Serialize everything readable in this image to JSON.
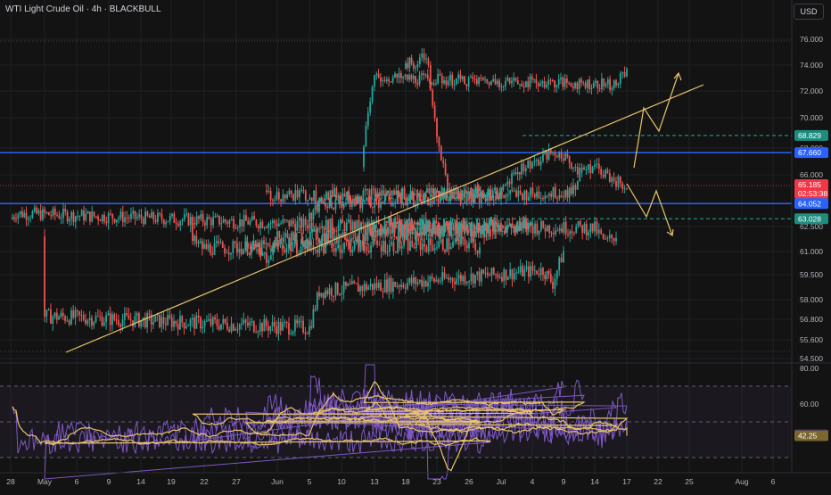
{
  "header": {
    "symbol_title": "WTI Light Crude Oil · 4h · BLACKBULL",
    "currency_button": "USD"
  },
  "colors": {
    "background": "#131313",
    "up": "#26a69a",
    "down": "#ef5350",
    "trendline": "#e8c56a",
    "level_line": "#2962ff",
    "dashed_level": "#26a69a",
    "rsi_line": "#7e57c2",
    "rsi_ma": "#e8c56a",
    "price_badge": "#f23645"
  },
  "chart_data": {
    "type": "candlestick",
    "symbol": "WTI Light Crude Oil",
    "timeframe": "4h",
    "broker": "BLACKBULL",
    "price_axis_ticks": [
      76.0,
      74.0,
      72.0,
      70.0,
      68.0,
      66.0,
      62.5,
      61.0,
      59.5,
      58.0,
      56.8,
      55.6,
      54.5
    ],
    "price_axis_labels": [
      "76.000",
      "74.000",
      "72.000",
      "70.000",
      "68.000",
      "66.000",
      "62.500",
      "61.000",
      "59.500",
      "58.000",
      "56.800",
      "55.600",
      "54.500"
    ],
    "x_axis_labels": [
      "28",
      "May",
      "6",
      "9",
      "14",
      "19",
      "22",
      "27",
      "Jun",
      "5",
      "10",
      "13",
      "18",
      "23",
      "26",
      "Jul",
      "4",
      "9",
      "14",
      "17",
      "22",
      "25",
      "Aug",
      "6"
    ],
    "close_path": [
      [
        "28",
        63.0
      ],
      [
        "29",
        63.4
      ],
      [
        "30",
        62.2
      ],
      [
        "May",
        57.0
      ],
      [
        "5",
        56.3
      ],
      [
        "6",
        58.5
      ],
      [
        "7",
        59.8
      ],
      [
        "8",
        59.0
      ],
      [
        "9",
        61.0
      ],
      [
        "12",
        62.0
      ],
      [
        "13",
        62.7
      ],
      [
        "14",
        62.4
      ],
      [
        "15",
        61.5
      ],
      [
        "16",
        62.0
      ],
      [
        "19",
        62.2
      ],
      [
        "20",
        62.4
      ],
      [
        "21",
        61.6
      ],
      [
        "22",
        61.2
      ],
      [
        "23",
        61.4
      ],
      [
        "26",
        61.5
      ],
      [
        "27",
        61.2
      ],
      [
        "28",
        61.8
      ],
      [
        "29",
        60.8
      ],
      [
        "30",
        60.6
      ],
      [
        "Jun",
        61.8
      ],
      [
        "3",
        62.6
      ],
      [
        "4",
        62.8
      ],
      [
        "5",
        63.0
      ],
      [
        "6",
        64.0
      ],
      [
        "9",
        64.8
      ],
      [
        "10",
        65.0
      ],
      [
        "11",
        67.0
      ],
      [
        "12",
        68.2
      ],
      [
        "13",
        73.0
      ],
      [
        "16",
        72.5
      ],
      [
        "17",
        73.6
      ],
      [
        "18",
        74.2
      ],
      [
        "19",
        74.0
      ],
      [
        "20",
        74.9
      ],
      [
        "23",
        68.5
      ],
      [
        "24",
        65.0
      ],
      [
        "25",
        64.6
      ],
      [
        "26",
        64.8
      ],
      [
        "27",
        64.9
      ],
      [
        "30",
        64.6
      ],
      [
        "Jul",
        64.8
      ],
      [
        "2",
        66.0
      ],
      [
        "3",
        66.5
      ],
      [
        "4",
        66.9
      ],
      [
        "7",
        67.3
      ],
      [
        "8",
        67.6
      ],
      [
        "9",
        67.4
      ],
      [
        "10",
        66.6
      ],
      [
        "11",
        66.3
      ],
      [
        "14",
        66.6
      ],
      [
        "15",
        66.1
      ],
      [
        "16",
        65.6
      ],
      [
        "17",
        65.1
      ]
    ],
    "last_price": {
      "value": 65.185,
      "label": "65.185",
      "countdown": "02:53:38"
    },
    "levels": [
      {
        "name": "resistance",
        "value": 67.66,
        "label": "67.660",
        "style": "solid"
      },
      {
        "name": "support",
        "value": 64.052,
        "label": "64.052",
        "style": "solid"
      },
      {
        "name": "upper-target",
        "value": 68.829,
        "label": "68.829",
        "style": "dashed"
      },
      {
        "name": "lower-target",
        "value": 63.028,
        "label": "63.028",
        "style": "dashed"
      }
    ],
    "rsi": {
      "axis_ticks": [
        80,
        60
      ],
      "axis_labels": [
        "80.00",
        "60.00"
      ],
      "value": 42.77,
      "value_label": "42.77",
      "ma": 42.25,
      "ma_label": "42.25",
      "bands": [
        70,
        50,
        30
      ]
    }
  }
}
